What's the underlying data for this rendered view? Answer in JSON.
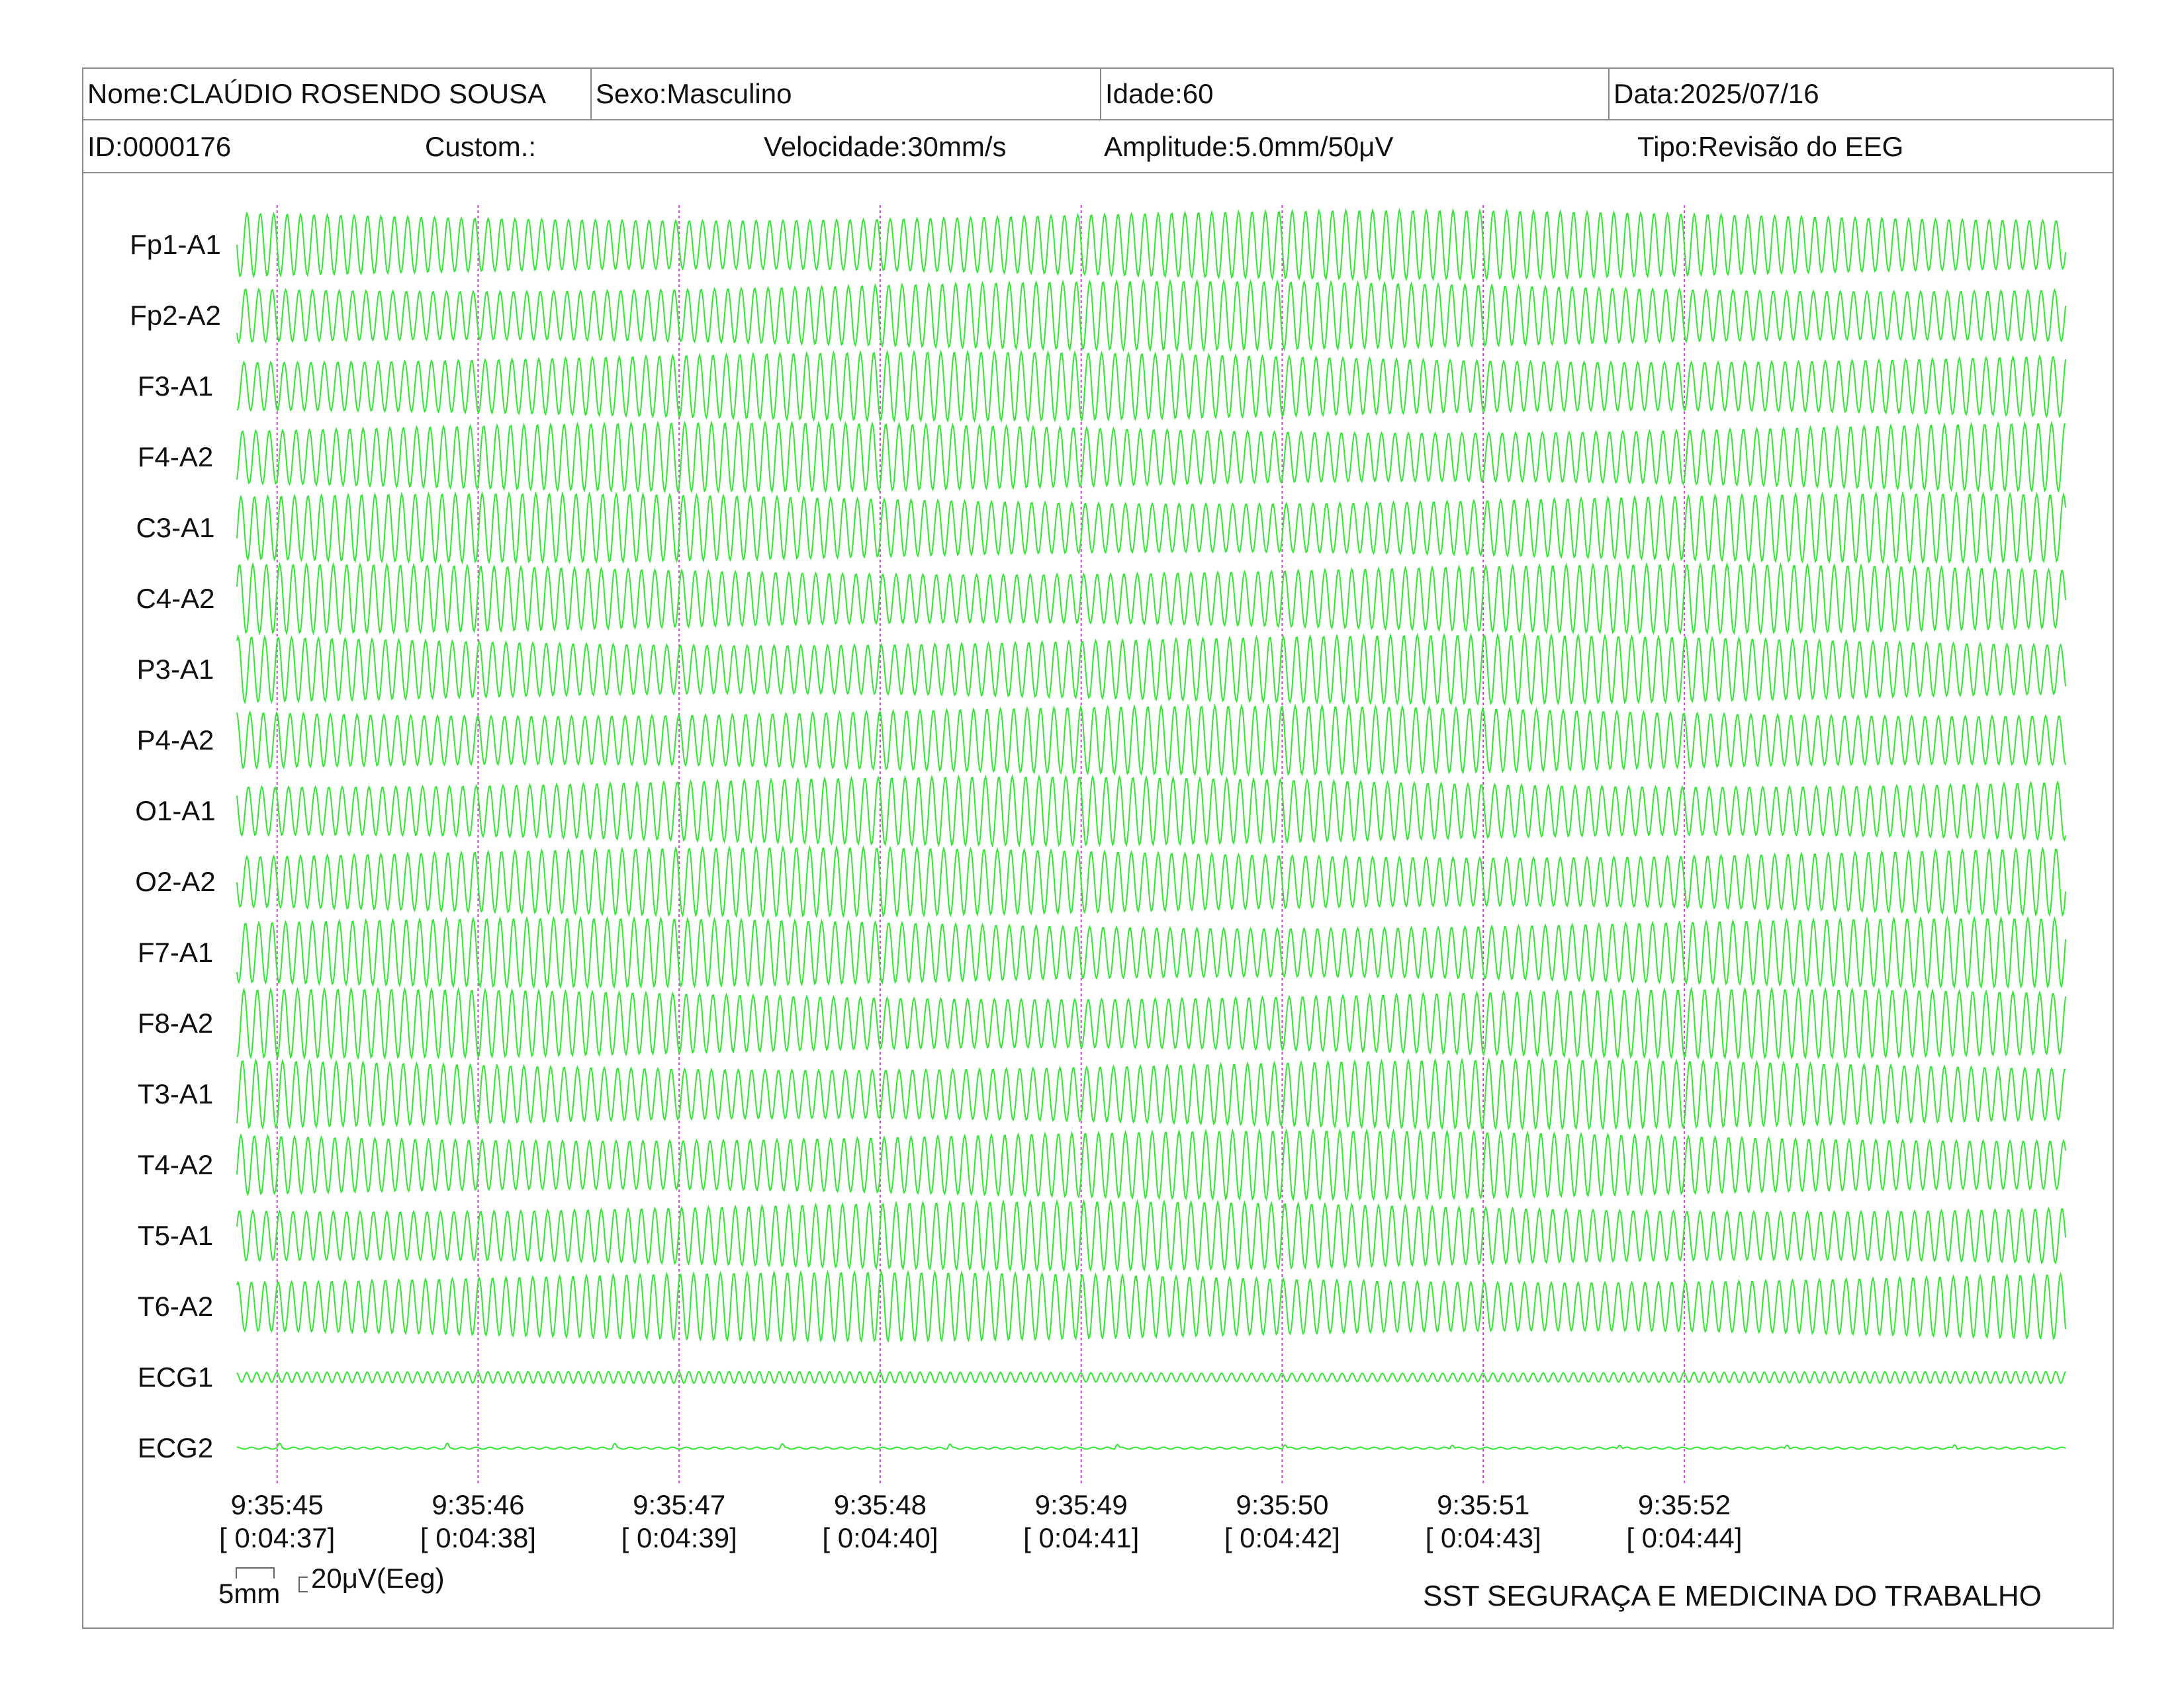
{
  "header": {
    "name": "Nome:CLAÚDIO ROSENDO SOUSA",
    "sex": "Sexo:Masculino",
    "age": "Idade:60",
    "date": "Data:2025/07/16",
    "id": "ID:0000176",
    "custom": "Custom.:",
    "speed": "Velocidade:30mm/s",
    "amplitude": "Amplitude:5.0mm/50μV",
    "type": "Tipo:Revisão do EEG"
  },
  "scale": {
    "time_label": "5mm",
    "amplitude_label": "20μV(Eeg)"
  },
  "footer": {
    "organization": "SST SEGURAÇA E MEDICINA DO TRABALHO"
  },
  "colors": {
    "trace": "#33e633",
    "marker": "#cc44cc",
    "border": "#8a8a8a"
  },
  "chart_data": {
    "type": "line",
    "title": "",
    "channels": [
      "Fp1-A1",
      "Fp2-A2",
      "F3-A1",
      "F4-A2",
      "C3-A1",
      "C4-A2",
      "P3-A1",
      "P4-A2",
      "O1-A1",
      "O2-A2",
      "F7-A1",
      "F8-A2",
      "T3-A1",
      "T4-A2",
      "T5-A1",
      "T6-A2",
      "ECG1",
      "ECG2"
    ],
    "time_markers": [
      {
        "clock": "9:35:45",
        "elapsed": "[ 0:04:37]"
      },
      {
        "clock": "9:35:46",
        "elapsed": "[ 0:04:38]"
      },
      {
        "clock": "9:35:47",
        "elapsed": "[ 0:04:39]"
      },
      {
        "clock": "9:35:48",
        "elapsed": "[ 0:04:40]"
      },
      {
        "clock": "9:35:49",
        "elapsed": "[ 0:04:41]"
      },
      {
        "clock": "9:35:50",
        "elapsed": "[ 0:04:42]"
      },
      {
        "clock": "9:35:51",
        "elapsed": "[ 0:04:43]"
      },
      {
        "clock": "9:35:52",
        "elapsed": "[ 0:04:44]"
      }
    ],
    "window_seconds": [
      44.8,
      53.9
    ],
    "eeg_dominant_frequency_hz": 15,
    "ecg1_frequency_hz": 20,
    "ecg2_frequency_hz": 1.2,
    "grid": false
  }
}
